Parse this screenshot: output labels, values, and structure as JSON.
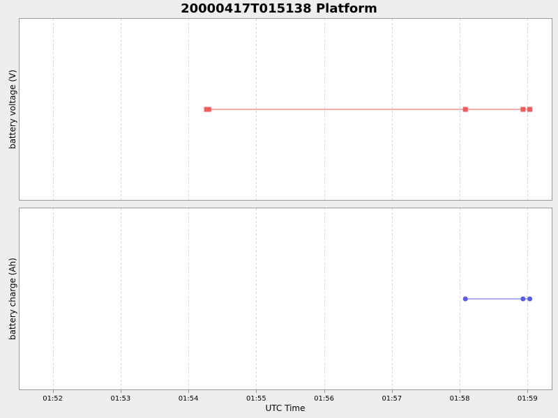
{
  "chart_data": {
    "type": "line",
    "title": "20000417T015138 Platform",
    "xlabel": "UTC Time",
    "x_ticks": [
      "01:52",
      "01:53",
      "01:54",
      "01:55",
      "01:56",
      "01:57",
      "01:58",
      "01:59"
    ],
    "xlim": [
      "01:51:30",
      "01:59:22"
    ],
    "grid": true,
    "panels": [
      {
        "ylabel": "battery voltage (V)",
        "series": [
          {
            "color": "#f05a5a",
            "marker": "square",
            "points": [
              {
                "x": "01:54:16",
                "y": 0
              },
              {
                "x": "01:54:18",
                "y": 0
              },
              {
                "x": "01:58:05",
                "y": 0
              },
              {
                "x": "01:58:56",
                "y": 0
              },
              {
                "x": "01:59:02",
                "y": 0
              }
            ]
          }
        ]
      },
      {
        "ylabel": "battery charge (Ah)",
        "series": [
          {
            "color": "#5a5af0",
            "marker": "circle",
            "points": [
              {
                "x": "01:58:05",
                "y": 0
              },
              {
                "x": "01:58:56",
                "y": 0
              },
              {
                "x": "01:59:02",
                "y": 0
              }
            ]
          }
        ]
      }
    ]
  }
}
